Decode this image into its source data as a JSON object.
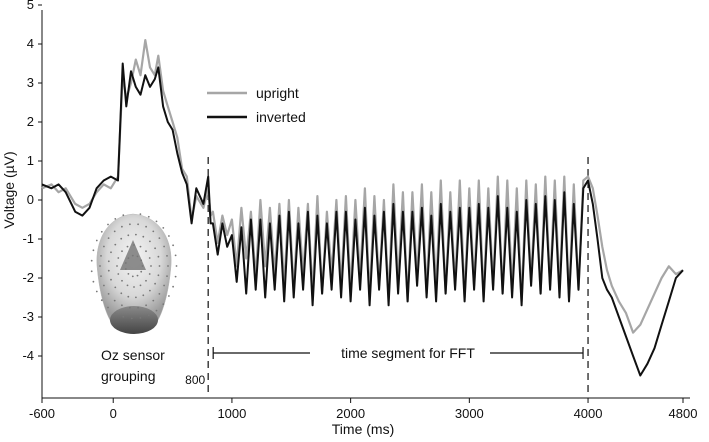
{
  "chart_data": {
    "type": "line",
    "title": "",
    "xlabel": "Time (ms)",
    "ylabel": "Voltage (µV)",
    "xlim": [
      -600,
      4800
    ],
    "ylim": [
      -5,
      5
    ],
    "x_ticks": [
      -600,
      0,
      1000,
      2000,
      3000,
      4000,
      4800
    ],
    "y_ticks": [
      5,
      4,
      3,
      2,
      1,
      0,
      -1,
      -2,
      -3,
      -4
    ],
    "grid": false,
    "legend": {
      "position": "top-center",
      "entries": [
        "upright",
        "inverted"
      ]
    },
    "series": [
      {
        "name": "upright",
        "color": "#a6a6a6",
        "x": [
          -600,
          -520,
          -460,
          -400,
          -320,
          -260,
          -200,
          -140,
          -80,
          -20,
          40,
          80,
          110,
          150,
          190,
          230,
          270,
          310,
          350,
          380,
          420,
          460,
          500,
          540,
          580,
          620,
          660,
          700,
          760,
          800,
          820,
          840,
          880,
          920,
          960,
          1000,
          1040,
          1080,
          1120,
          1160,
          1200,
          1240,
          1280,
          1320,
          1360,
          1400,
          1440,
          1480,
          1520,
          1560,
          1600,
          1640,
          1680,
          1720,
          1760,
          1800,
          1840,
          1880,
          1920,
          1960,
          2000,
          2040,
          2080,
          2120,
          2160,
          2200,
          2240,
          2280,
          2320,
          2360,
          2400,
          2440,
          2480,
          2520,
          2560,
          2600,
          2640,
          2680,
          2720,
          2760,
          2800,
          2840,
          2880,
          2920,
          2960,
          3000,
          3040,
          3080,
          3120,
          3160,
          3200,
          3240,
          3280,
          3320,
          3360,
          3400,
          3440,
          3480,
          3520,
          3560,
          3600,
          3640,
          3680,
          3720,
          3760,
          3800,
          3840,
          3880,
          3920,
          3960,
          4000,
          4040,
          4080,
          4120,
          4160,
          4200,
          4260,
          4320,
          4380,
          4440,
          4500,
          4560,
          4620,
          4680,
          4740,
          4800
        ],
        "values": [
          0.3,
          0.4,
          0.2,
          0.3,
          -0.1,
          -0.2,
          -0.1,
          0.2,
          0.4,
          0.3,
          0.6,
          3.2,
          2.6,
          3.0,
          3.6,
          3.2,
          4.1,
          3.4,
          3.2,
          3.7,
          2.8,
          2.4,
          2.0,
          1.6,
          0.8,
          0.6,
          -0.5,
          0.1,
          -0.2,
          0.3,
          -0.4,
          -0.3,
          -1.1,
          -0.4,
          -0.9,
          -0.5,
          -1.7,
          -0.2,
          -1.5,
          -0.3,
          -2.0,
          0.0,
          -1.7,
          -0.2,
          -1.9,
          -0.1,
          -2.2,
          0.0,
          -2.3,
          -0.2,
          -1.9,
          -0.1,
          -2.4,
          0.1,
          -2.4,
          -0.3,
          -1.9,
          0.0,
          -2.2,
          0.1,
          -2.3,
          0.0,
          -2.0,
          0.3,
          -2.5,
          0.1,
          -2.2,
          0.0,
          -2.5,
          0.4,
          -2.1,
          0.2,
          -2.6,
          0.2,
          -2.0,
          0.4,
          -2.4,
          0.2,
          -2.3,
          0.5,
          -2.4,
          0.2,
          -2.2,
          0.5,
          -2.5,
          0.3,
          -2.2,
          0.5,
          -2.5,
          0.3,
          -2.2,
          0.6,
          -2.4,
          0.5,
          -2.3,
          0.3,
          -2.6,
          0.5,
          -2.1,
          0.4,
          -2.4,
          0.6,
          -2.2,
          0.5,
          -2.3,
          0.6,
          -2.5,
          0.4,
          -2.3,
          0.5,
          0.6,
          0.3,
          -0.4,
          -1.2,
          -1.8,
          -2.2,
          -2.6,
          -2.9,
          -3.4,
          -3.2,
          -2.8,
          -2.4,
          -2.0,
          -1.7,
          -1.9,
          -1.8
        ]
      },
      {
        "name": "inverted",
        "color": "#111111",
        "x": [
          -600,
          -520,
          -460,
          -400,
          -320,
          -260,
          -200,
          -140,
          -80,
          -20,
          40,
          80,
          110,
          150,
          190,
          230,
          270,
          310,
          350,
          380,
          420,
          460,
          500,
          540,
          580,
          620,
          660,
          700,
          760,
          800,
          820,
          840,
          880,
          920,
          960,
          1000,
          1040,
          1080,
          1120,
          1160,
          1200,
          1240,
          1280,
          1320,
          1360,
          1400,
          1440,
          1480,
          1520,
          1560,
          1600,
          1640,
          1680,
          1720,
          1760,
          1800,
          1840,
          1880,
          1920,
          1960,
          2000,
          2040,
          2080,
          2120,
          2160,
          2200,
          2240,
          2280,
          2320,
          2360,
          2400,
          2440,
          2480,
          2520,
          2560,
          2600,
          2640,
          2680,
          2720,
          2760,
          2800,
          2840,
          2880,
          2920,
          2960,
          3000,
          3040,
          3080,
          3120,
          3160,
          3200,
          3240,
          3280,
          3320,
          3360,
          3400,
          3440,
          3480,
          3520,
          3560,
          3600,
          3640,
          3680,
          3720,
          3760,
          3800,
          3840,
          3880,
          3920,
          3960,
          4000,
          4040,
          4080,
          4120,
          4160,
          4200,
          4260,
          4320,
          4380,
          4440,
          4500,
          4560,
          4620,
          4680,
          4740,
          4800
        ],
        "values": [
          0.4,
          0.3,
          0.4,
          0.2,
          -0.3,
          -0.4,
          -0.2,
          0.3,
          0.5,
          0.6,
          0.5,
          3.5,
          2.4,
          3.3,
          2.9,
          2.7,
          3.2,
          2.9,
          3.1,
          3.4,
          2.4,
          2.0,
          1.8,
          1.2,
          0.7,
          0.4,
          -0.6,
          0.3,
          -0.1,
          0.6,
          -0.6,
          -0.6,
          -1.4,
          -0.6,
          -1.2,
          -0.9,
          -2.1,
          -0.7,
          -2.4,
          -0.5,
          -2.3,
          -0.5,
          -2.5,
          -0.6,
          -2.3,
          -0.4,
          -2.6,
          -0.3,
          -2.5,
          -0.6,
          -2.3,
          -0.3,
          -2.7,
          -0.4,
          -2.4,
          -0.6,
          -2.3,
          -0.3,
          -2.5,
          -0.3,
          -2.6,
          -0.5,
          -2.3,
          -0.2,
          -2.7,
          -0.4,
          -2.3,
          -0.3,
          -2.7,
          -0.1,
          -2.4,
          -0.3,
          -2.6,
          -0.3,
          -2.2,
          -0.2,
          -2.5,
          -0.4,
          -2.6,
          -0.1,
          -2.4,
          -0.3,
          -2.3,
          -0.2,
          -2.6,
          -0.2,
          -2.3,
          -0.1,
          -2.6,
          -0.2,
          -2.3,
          0.1,
          -2.4,
          -0.2,
          -2.5,
          -0.3,
          -2.7,
          0.0,
          -2.2,
          -0.1,
          -2.4,
          0.1,
          -2.3,
          0.0,
          -2.5,
          0.2,
          -2.6,
          -0.1,
          -2.3,
          0.3,
          0.5,
          -0.1,
          -1.0,
          -2.0,
          -2.3,
          -2.5,
          -3.0,
          -3.5,
          -4.0,
          -4.5,
          -4.2,
          -3.8,
          -3.2,
          -2.6,
          -2.0,
          -1.8
        ]
      }
    ],
    "markers": [
      {
        "x": 800,
        "label": "800"
      },
      {
        "x": 4000,
        "label": ""
      }
    ],
    "segment": {
      "from": 800,
      "to": 4000,
      "y": -4.2,
      "label": "time segment for FFT"
    },
    "inset": {
      "caption_line1": "Oz sensor",
      "caption_line2": "grouping"
    }
  }
}
